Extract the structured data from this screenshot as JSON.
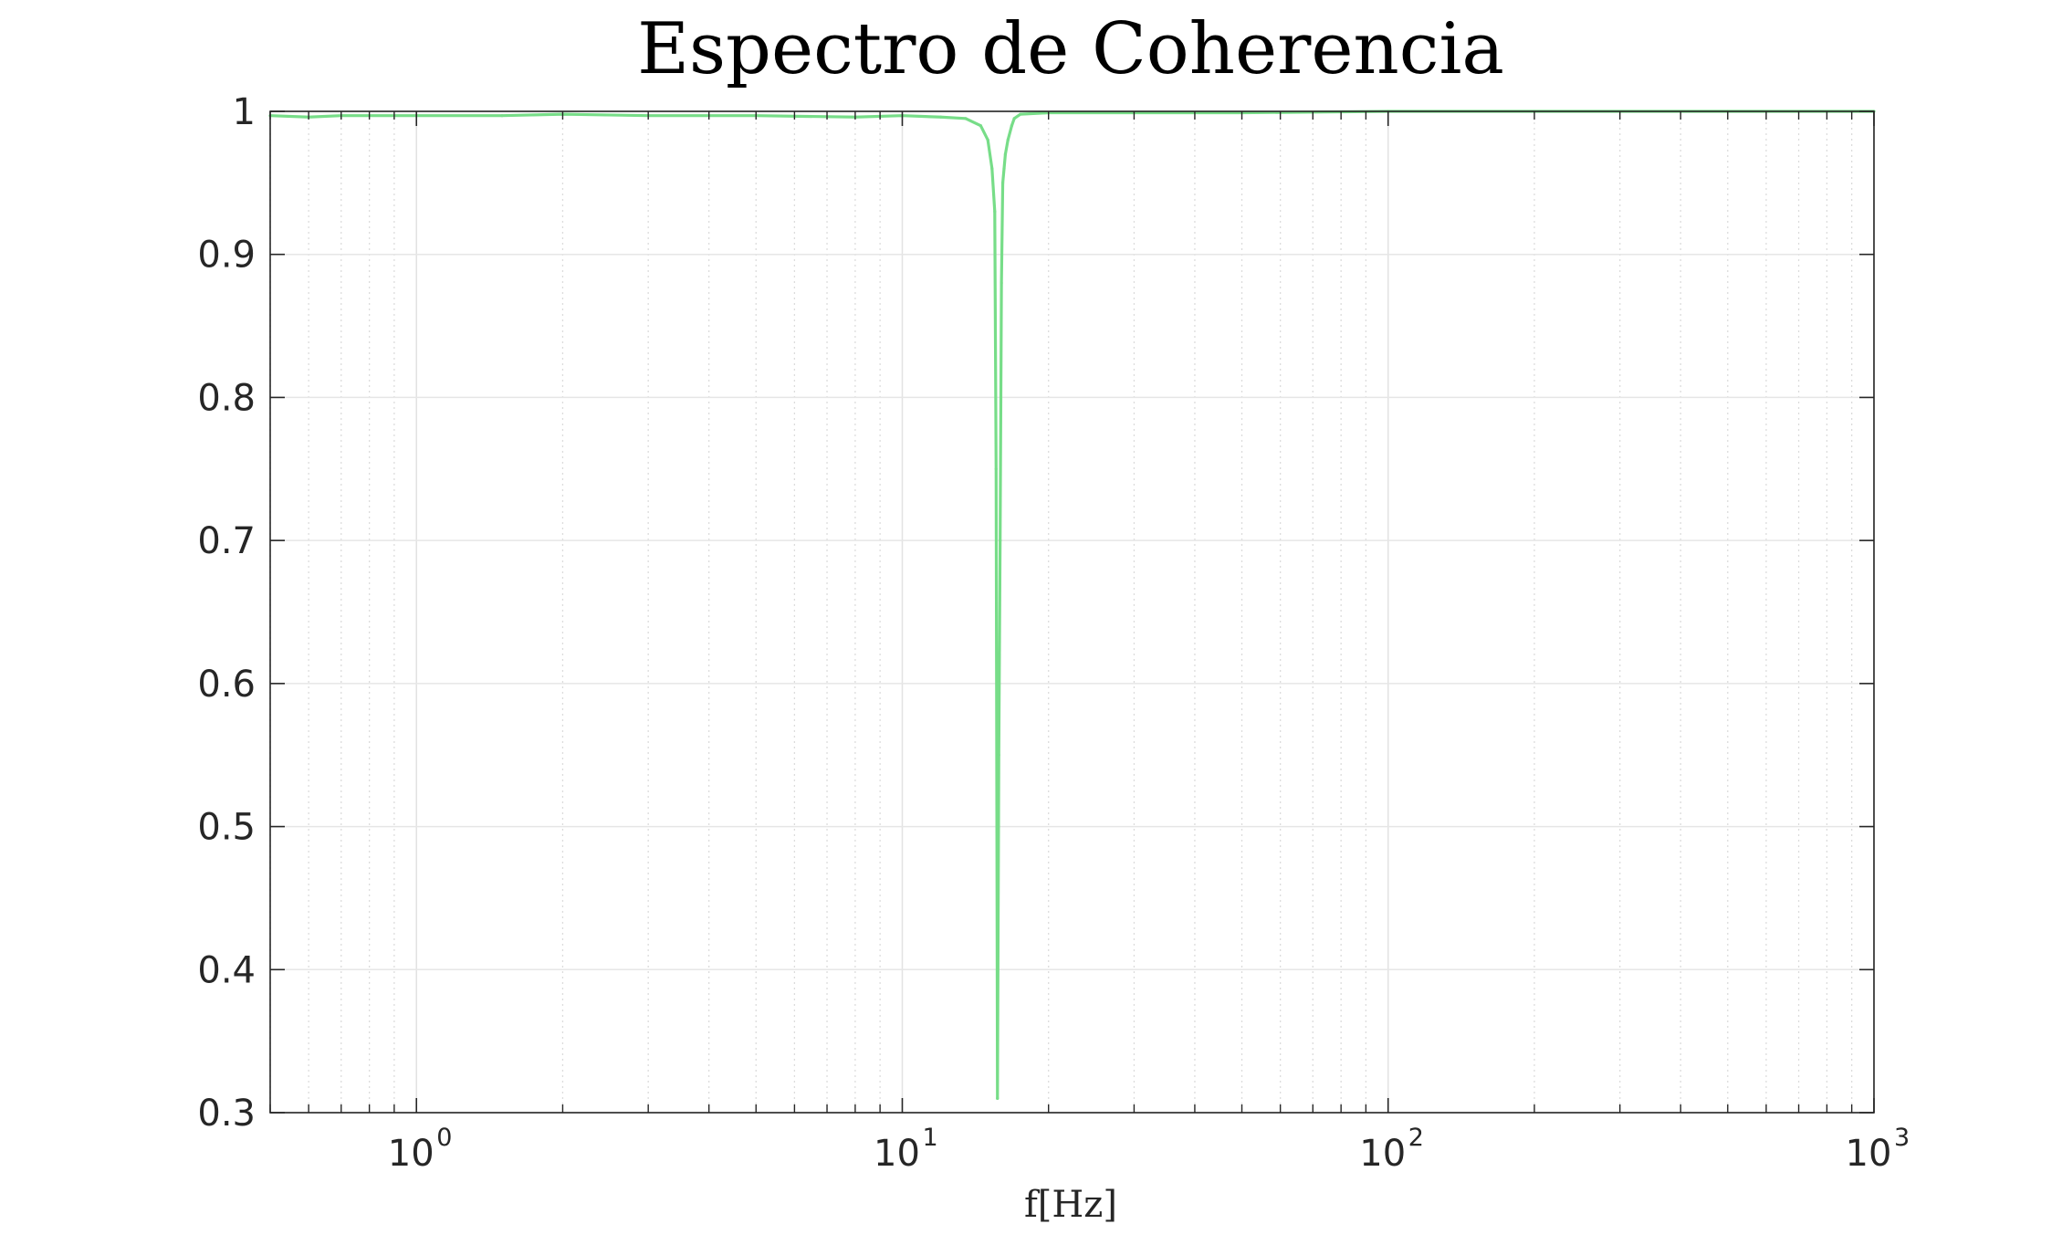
{
  "chart_data": {
    "type": "line",
    "title": "Espectro de Coherencia",
    "xlabel": "f[Hz]",
    "ylabel": "",
    "xscale": "log",
    "xlim": [
      0.5,
      1000
    ],
    "ylim": [
      0.3,
      1
    ],
    "grid": true,
    "minor_grid": true,
    "y_ticks": [
      0.3,
      0.4,
      0.5,
      0.6,
      0.7,
      0.8,
      0.9,
      1
    ],
    "y_tick_labels": [
      "0.3",
      "0.4",
      "0.5",
      "0.6",
      "0.7",
      "0.8",
      "0.9",
      "1"
    ],
    "x_ticks": [
      1,
      10,
      100,
      1000
    ],
    "x_tick_labels": [
      {
        "base": "10",
        "exp": "0"
      },
      {
        "base": "10",
        "exp": "1"
      },
      {
        "base": "10",
        "exp": "2"
      },
      {
        "base": "10",
        "exp": "3"
      }
    ],
    "series": [
      {
        "color": "#77dd88",
        "x": [
          0.5,
          0.6,
          0.7,
          0.8,
          1.0,
          1.5,
          2.0,
          3.0,
          5.0,
          8.0,
          10.0,
          12.0,
          13.5,
          14.5,
          15.0,
          15.3,
          15.5,
          15.6,
          15.7,
          15.8,
          15.9,
          16.0,
          16.1,
          16.2,
          16.3,
          16.5,
          16.8,
          17.0,
          17.5,
          20,
          30,
          50,
          100,
          200,
          500,
          1000
        ],
        "y": [
          0.997,
          0.996,
          0.997,
          0.997,
          0.997,
          0.997,
          0.998,
          0.997,
          0.997,
          0.996,
          0.997,
          0.996,
          0.995,
          0.99,
          0.98,
          0.96,
          0.93,
          0.75,
          0.31,
          0.55,
          0.7,
          0.88,
          0.95,
          0.96,
          0.97,
          0.98,
          0.99,
          0.995,
          0.998,
          0.999,
          0.999,
          0.999,
          1.0,
          1.0,
          1.0,
          1.0
        ]
      }
    ]
  }
}
